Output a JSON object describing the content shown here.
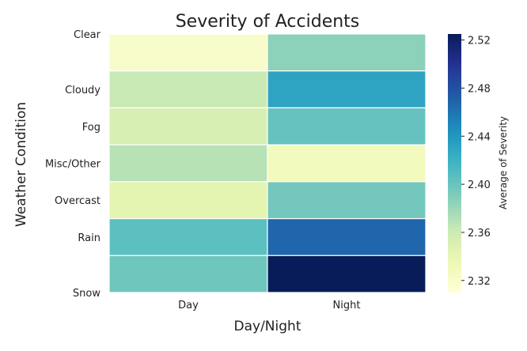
{
  "chart_data": {
    "type": "heatmap",
    "title": "Severity of Accidents",
    "xlabel": "Day/Night",
    "ylabel": "Weather Condition",
    "x_categories": [
      "Day",
      "Night"
    ],
    "y_categories": [
      "Clear",
      "Cloudy",
      "Fog",
      "Misc/Other",
      "Overcast",
      "Rain",
      "Snow"
    ],
    "values": [
      [
        2.32,
        2.386
      ],
      [
        2.362,
        2.43
      ],
      [
        2.352,
        2.402
      ],
      [
        2.37,
        2.328
      ],
      [
        2.343,
        2.396
      ],
      [
        2.405,
        2.467
      ],
      [
        2.398,
        2.528
      ]
    ],
    "colorbar": {
      "label": "Average of Severity",
      "range": [
        2.31,
        2.525
      ],
      "ticks": [
        "2.32",
        "2.36",
        "2.40",
        "2.44",
        "2.48",
        "2.52"
      ],
      "colormap": "YlGnBu"
    },
    "grid": false,
    "cell_border_color": "#ffffff"
  }
}
